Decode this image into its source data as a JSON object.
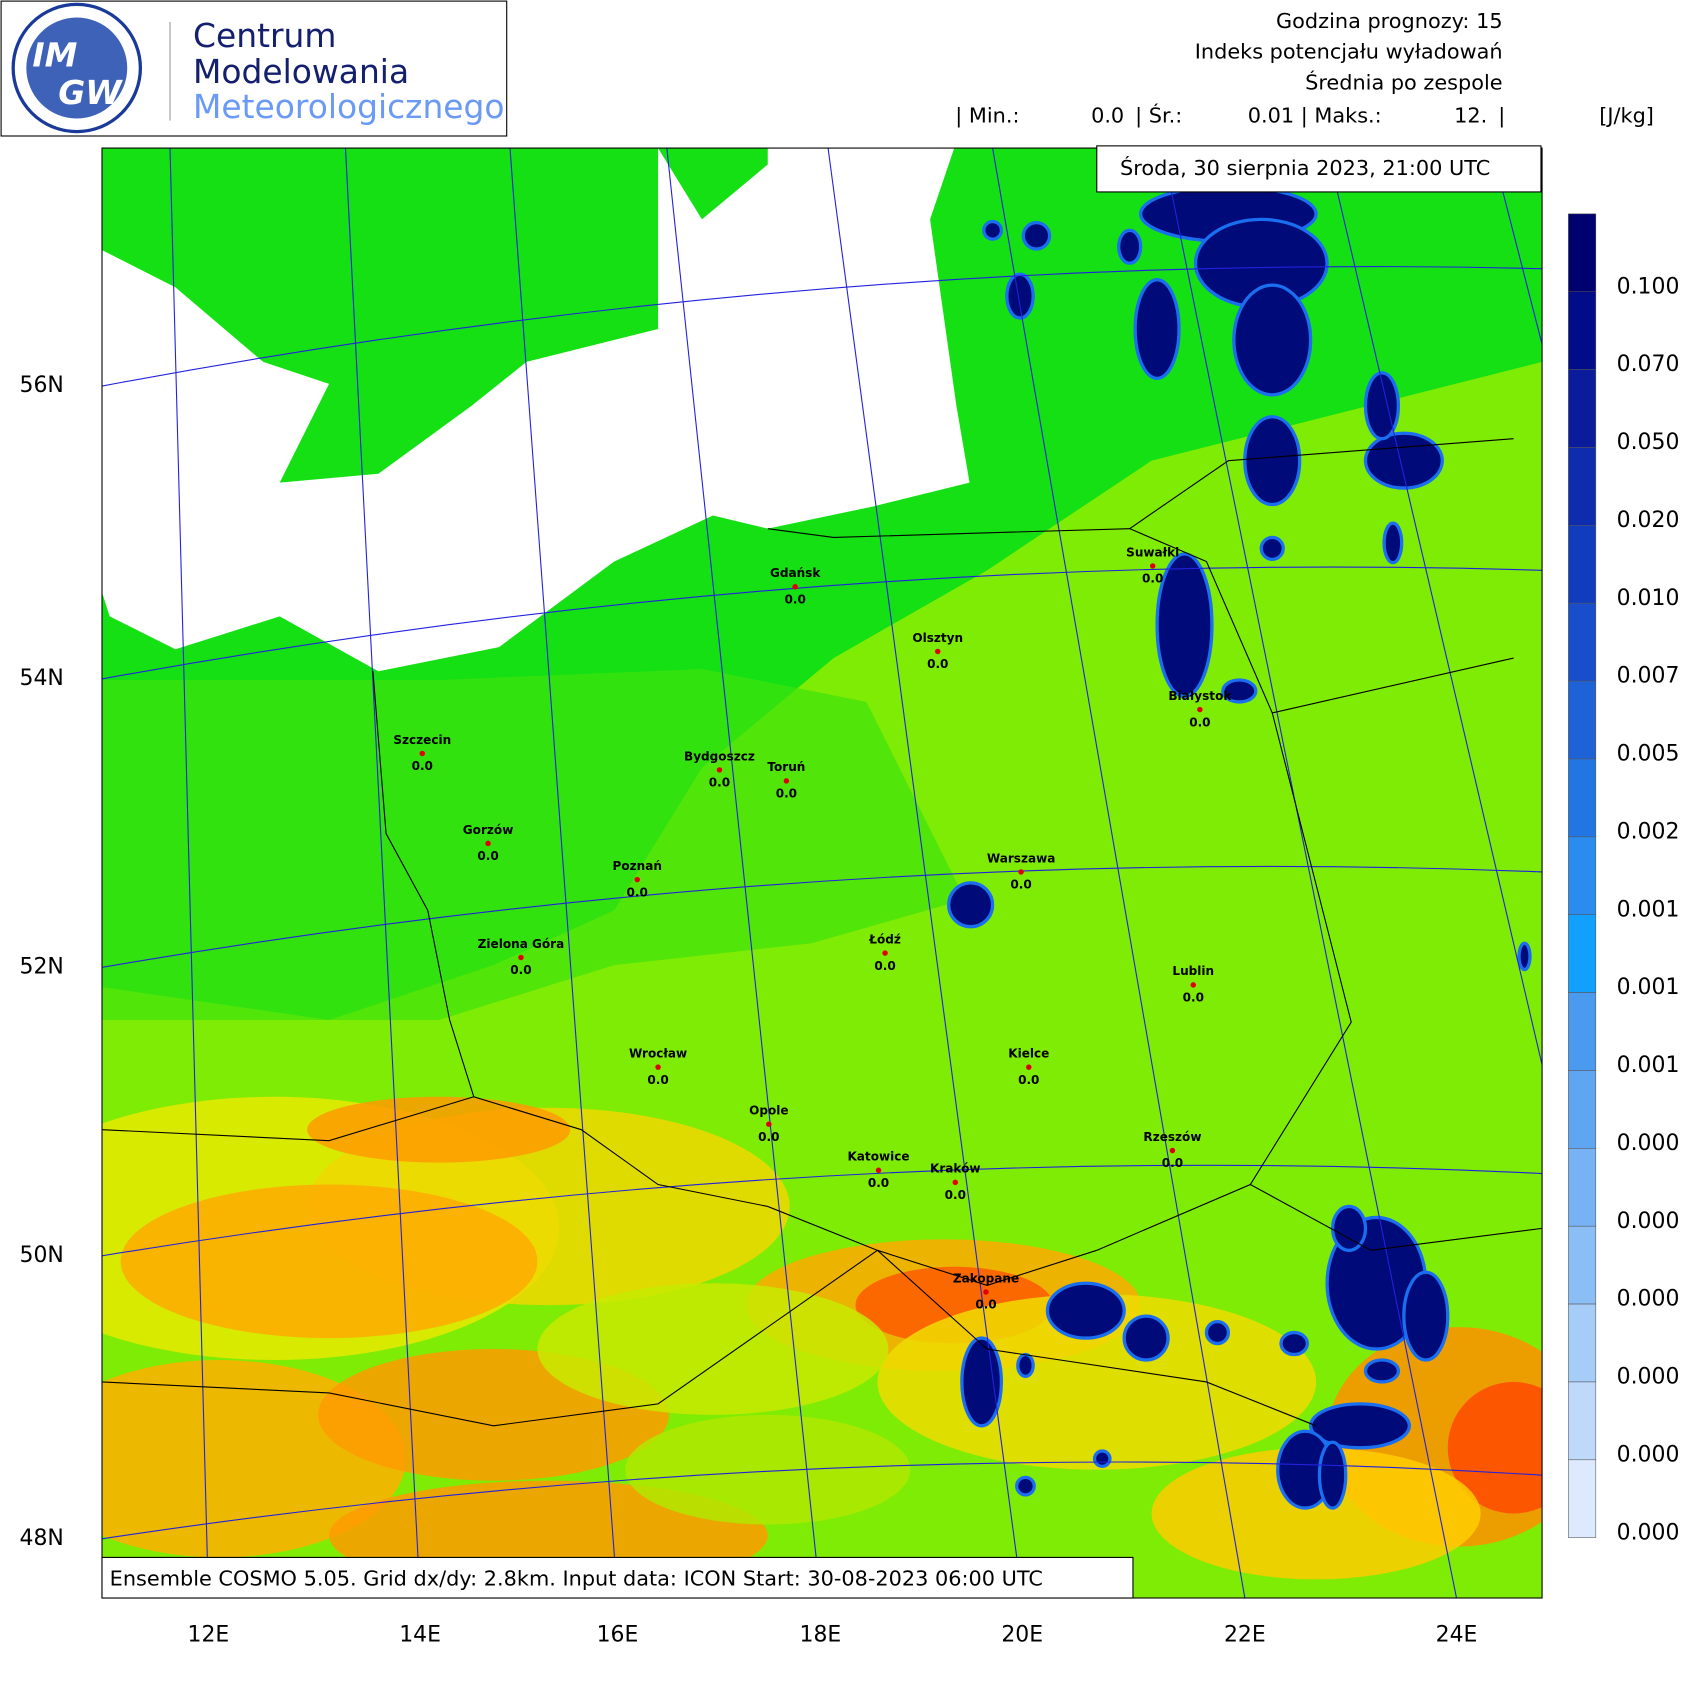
{
  "header": {
    "logo_top": "IM",
    "logo_bottom": "GW",
    "org_lines": [
      "Centrum",
      "Modelowania",
      "Meteorologicznego"
    ],
    "forecast_hour": "Godzina prognozy: 15",
    "index_name": "Indeks potencjału wyładowań",
    "aggregation": "Średnia po zespole",
    "stats": {
      "min_label": "| Min.:",
      "min": "0.0",
      "mean_label": "| Śr.:",
      "mean": "0.01",
      "max_label": "| Maks.:",
      "max": "12.",
      "end": "|",
      "unit": "[J/kg]"
    }
  },
  "date": "Środa, 30 sierpnia 2023, 21:00 UTC",
  "legend": {
    "labels": [
      "0.100",
      "0.070",
      "0.050",
      "0.020",
      "0.010",
      "0.007",
      "0.005",
      "0.002",
      "0.001",
      "0.001",
      "0.001",
      "0.000",
      "0.000",
      "0.000",
      "0.000",
      "0.000",
      "0.000"
    ],
    "colors": [
      "#00006e",
      "#000c88",
      "#0a1c9c",
      "#0e2cae",
      "#123cbe",
      "#184ecb",
      "#1e62d8",
      "#2276e4",
      "#2a8cee",
      "#12a0ff",
      "#4a9af0",
      "#5fa6f2",
      "#76b2f4",
      "#8cbef6",
      "#a6ccf8",
      "#bed9fa",
      "#dde9fd"
    ]
  },
  "lat_labels": [
    "56N",
    "54N",
    "52N",
    "50N",
    "48N"
  ],
  "lon_labels": [
    "12E",
    "14E",
    "16E",
    "18E",
    "20E",
    "22E",
    "24E"
  ],
  "cities": [
    {
      "name": "Gdańsk",
      "value": "0.0"
    },
    {
      "name": "Olsztyn",
      "value": "0.0"
    },
    {
      "name": "Suwałki",
      "value": "0.0"
    },
    {
      "name": "Białystok",
      "value": "0.0"
    },
    {
      "name": "Szczecin",
      "value": "0.0"
    },
    {
      "name": "Bydgoszcz",
      "value": "0.0"
    },
    {
      "name": "Toruń",
      "value": "0.0"
    },
    {
      "name": "Gorzów",
      "value": "0.0"
    },
    {
      "name": "Poznań",
      "value": "0.0"
    },
    {
      "name": "Warszawa",
      "value": "0.0"
    },
    {
      "name": "Zielona Góra",
      "value": "0.0"
    },
    {
      "name": "Łódź",
      "value": "0.0"
    },
    {
      "name": "Lublin",
      "value": "0.0"
    },
    {
      "name": "Wrocław",
      "value": "0.0"
    },
    {
      "name": "Kielce",
      "value": "0.0"
    },
    {
      "name": "Opole",
      "value": "0.0"
    },
    {
      "name": "Katowice",
      "value": "0.0"
    },
    {
      "name": "Kraków",
      "value": "0.0"
    },
    {
      "name": "Rzeszów",
      "value": "0.0"
    },
    {
      "name": "Zakopane",
      "value": "0.0"
    }
  ],
  "footer": "Ensemble COSMO 5.05. Grid dx/dy: 2.8km. Input data: ICON Start: 30-08-2023 06:00 UTC"
}
